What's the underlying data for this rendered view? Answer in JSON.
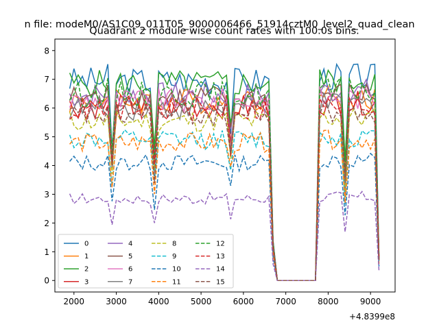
{
  "chart_data": {
    "type": "line",
    "suptitle": "n file: modeM0/AS1C09_011T05_9000006466_51914cztM0_level2_quad_clean",
    "title": "Quadrant 2 module wise count rates with 100.0s bins.",
    "xlabel": "",
    "ylabel": "",
    "x_offset_label": "+4.8399e8",
    "xlim": [
      1550,
      9580
    ],
    "ylim": [
      -0.4,
      8.4
    ],
    "xticks": [
      2000,
      3000,
      4000,
      5000,
      6000,
      7000,
      8000,
      9000
    ],
    "yticks": [
      0,
      1,
      2,
      3,
      4,
      5,
      6,
      7,
      8
    ],
    "legend_position": "lower-left",
    "legend_columns": 4,
    "series": [
      {
        "name": "0",
        "color": "#1f77b4",
        "dash": "solid",
        "base": 6.95
      },
      {
        "name": "1",
        "color": "#ff7f0e",
        "dash": "solid",
        "base": 6.25
      },
      {
        "name": "2",
        "color": "#2ca02c",
        "dash": "solid",
        "base": 6.85
      },
      {
        "name": "3",
        "color": "#d62728",
        "dash": "solid",
        "base": 6.05
      },
      {
        "name": "4",
        "color": "#9467bd",
        "dash": "solid",
        "base": 6.45
      },
      {
        "name": "5",
        "color": "#8c564b",
        "dash": "solid",
        "base": 6.35
      },
      {
        "name": "6",
        "color": "#e377c2",
        "dash": "solid",
        "base": 6.25
      },
      {
        "name": "7",
        "color": "#7f7f7f",
        "dash": "solid",
        "base": 6.0
      },
      {
        "name": "8",
        "color": "#bcbd22",
        "dash": "dashed",
        "base": 5.55
      },
      {
        "name": "9",
        "color": "#17becf",
        "dash": "dashed",
        "base": 4.9
      },
      {
        "name": "10",
        "color": "#1f77b4",
        "dash": "dashed",
        "base": 4.1
      },
      {
        "name": "11",
        "color": "#ff7f0e",
        "dash": "dashed",
        "base": 4.8
      },
      {
        "name": "12",
        "color": "#2ca02c",
        "dash": "dashed",
        "base": 6.5
      },
      {
        "name": "13",
        "color": "#d62728",
        "dash": "dashed",
        "base": 5.95
      },
      {
        "name": "14",
        "color": "#9467bd",
        "dash": "dashed",
        "base": 2.85
      },
      {
        "name": "15",
        "color": "#8c564b",
        "dash": "dashed",
        "base": 5.75
      }
    ]
  }
}
